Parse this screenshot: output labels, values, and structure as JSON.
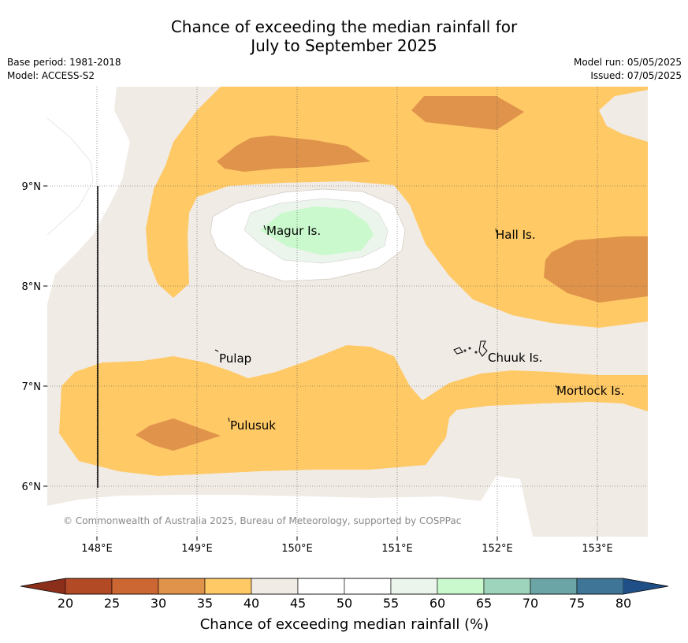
{
  "title_line1": "Chance of exceeding the median rainfall for",
  "title_line2": "July to September 2025",
  "base_period": "Base period: 1981-2018",
  "model": "Model: ACCESS-S2",
  "model_run": "Model run: 05/05/2025",
  "issued": "Issued: 07/05/2025",
  "copyright": "© Commonwealth of Australia 2025, Bureau of Meteorology, supported by COSPPac",
  "lon_labels": [
    "148°E",
    "149°E",
    "150°E",
    "151°E",
    "152°E",
    "153°E"
  ],
  "lat_labels": [
    "9°N",
    "8°N",
    "7°N",
    "6°N"
  ],
  "places": {
    "magur": "Magur Is.",
    "hall": "Hall Is.",
    "pulap": "Pulap",
    "chuuk": "Chuuk Is.",
    "mortlock": "Mortlock Is.",
    "pulusuk": "Pulusuk"
  },
  "colorbar": {
    "label": "Chance of exceeding median rainfall (%)",
    "ticks": [
      "20",
      "25",
      "30",
      "35",
      "40",
      "45",
      "50",
      "55",
      "60",
      "65",
      "70",
      "75",
      "80"
    ],
    "colors": [
      "#b14a25",
      "#cc6633",
      "#e0934a",
      "#ffc966",
      "#f0ebe5",
      "#ffffff",
      "#ffffff",
      "#ebf5eb",
      "#c9f9cc",
      "#9ed4bb",
      "#6ba5a5",
      "#3f7596"
    ],
    "under_color": "#8b2e1a",
    "over_color": "#1f4f86"
  },
  "colors": {
    "band_30_35": "#e0934a",
    "band_35_40": "#ffc966",
    "band_40_45": "#f0ebe5",
    "band_45_55": "#ffffff",
    "band_55_60": "#ebf5eb",
    "band_60_65": "#c9f9cc"
  }
}
